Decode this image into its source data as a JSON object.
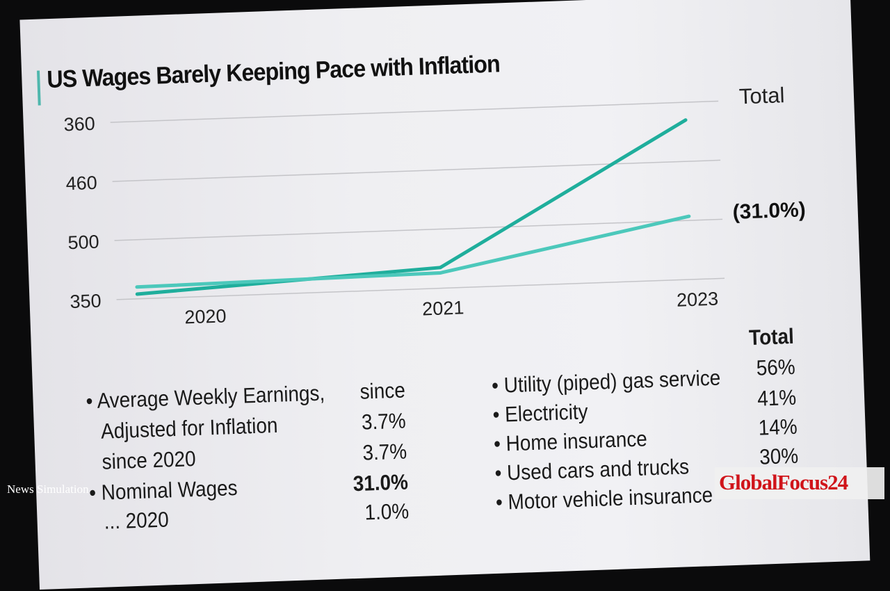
{
  "chart_data": {
    "type": "line",
    "title": "US Wages Barely Keeping Pace with Inflation",
    "categories": [
      "2020",
      "2021",
      "2023"
    ],
    "y_tick_labels": [
      "350",
      "500",
      "460",
      "360"
    ],
    "grid": true,
    "series": [
      {
        "values": [
          0.08,
          0.35,
          2.7
        ],
        "color": "#1fae9c"
      },
      {
        "values": [
          0.2,
          0.26,
          1.07
        ],
        "color": "#4cc8bb"
      }
    ],
    "series_labels": [
      "Total",
      "(31.0%)"
    ],
    "legend": "right (end-of-line labels)"
  },
  "left_list": {
    "rows": [
      {
        "label": "• Average Weekly Earnings,",
        "value": "since"
      },
      {
        "label": "Adjusted for Inflation",
        "value": "3.7%"
      },
      {
        "label": "since 2020",
        "value": "3.7%"
      },
      {
        "label": "• Nominal Wages",
        "value": "31.0%"
      },
      {
        "label": "... 2020",
        "value": "1.0%"
      }
    ]
  },
  "right_list": {
    "header": "Total",
    "rows": [
      {
        "label": "• Utility (piped) gas service",
        "value": "56%"
      },
      {
        "label": "• Electricity",
        "value": "41%"
      },
      {
        "label": "• Home insurance",
        "value": "14%"
      },
      {
        "label": "• Used cars and trucks",
        "value": "30%"
      },
      {
        "label": "• Motor vehicle insurance",
        "value": ""
      }
    ]
  },
  "watermarks": {
    "left": "News Simulation",
    "right": "GlobalFocus24"
  }
}
